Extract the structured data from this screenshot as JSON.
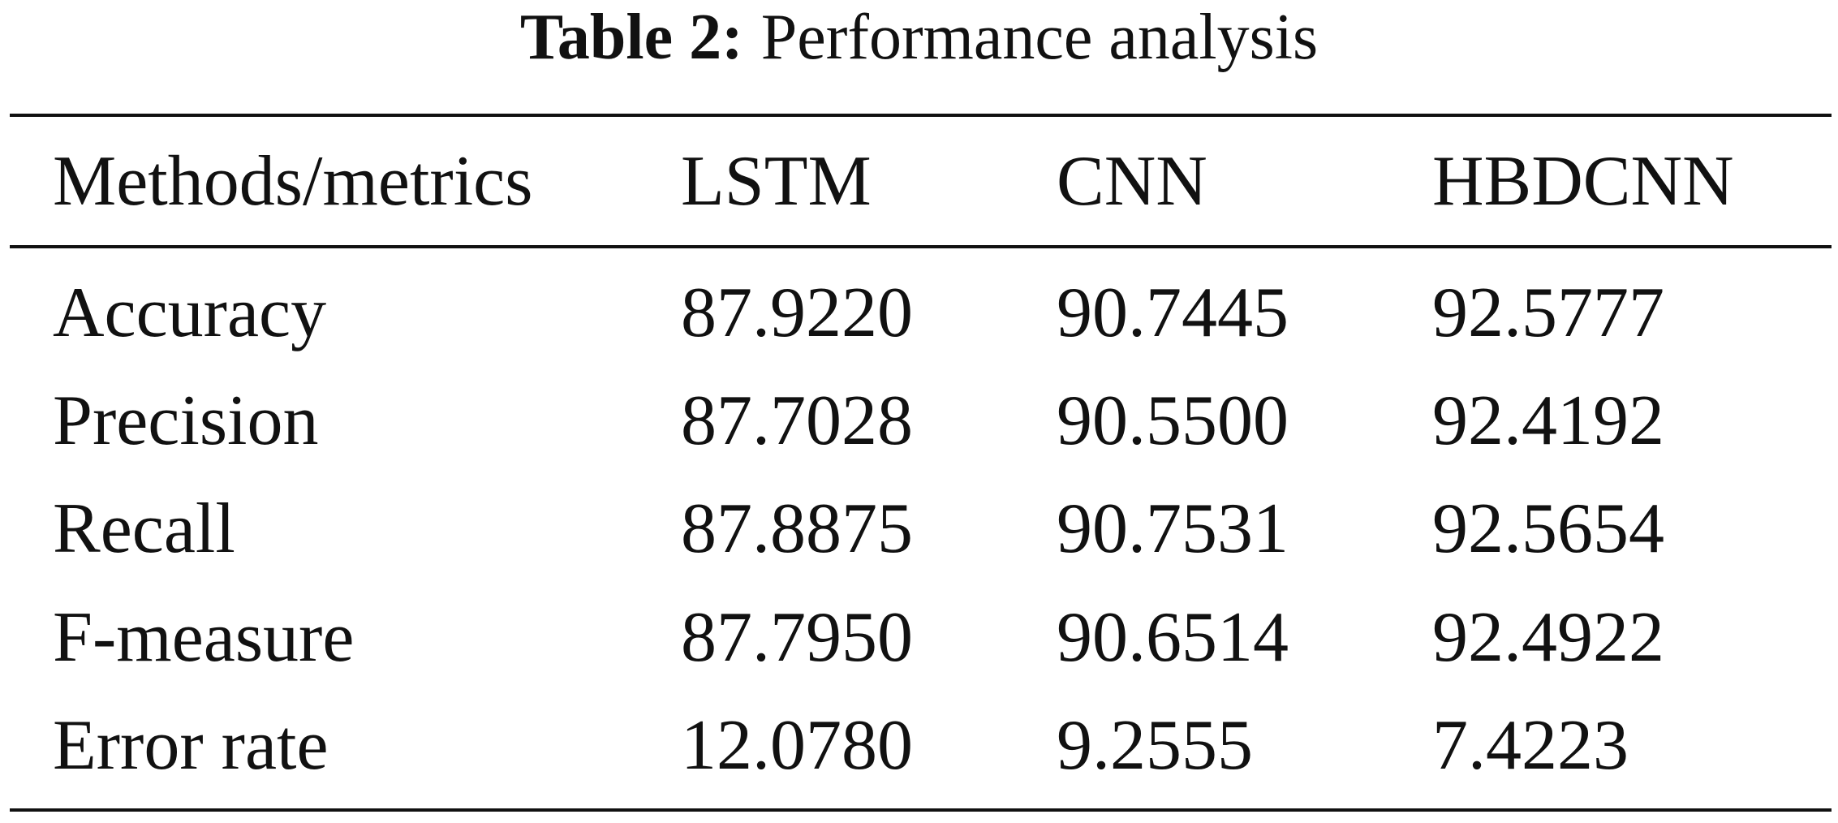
{
  "title": {
    "label": "Table 2:",
    "text": "Performance analysis"
  },
  "table": {
    "header": [
      "Methods/metrics",
      "LSTM",
      "CNN",
      "HBDCNN"
    ],
    "rows": [
      [
        "Accuracy",
        "87.9220",
        "90.7445",
        "92.5777"
      ],
      [
        "Precision",
        "87.7028",
        "90.5500",
        "92.4192"
      ],
      [
        "Recall",
        "87.8875",
        "90.7531",
        "92.5654"
      ],
      [
        "F-measure",
        "87.7950",
        "90.6514",
        "92.4922"
      ],
      [
        "Error rate",
        "12.0780",
        "9.2555",
        "7.4223"
      ]
    ]
  }
}
